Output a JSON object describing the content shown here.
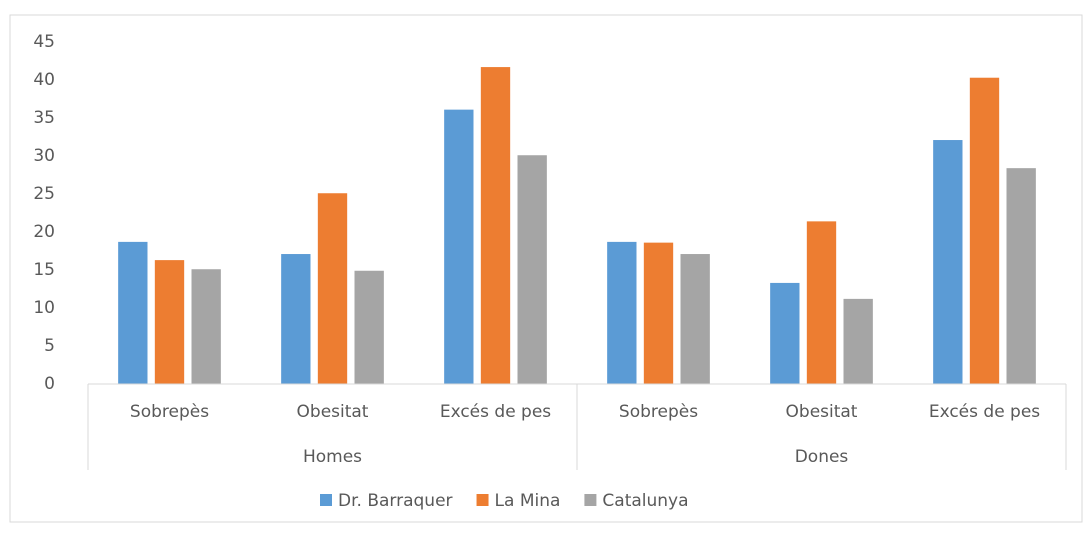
{
  "chart_data": {
    "type": "bar",
    "groups": [
      {
        "name": "Homes",
        "categories": [
          "Sobrepès",
          "Obesitat",
          "Excés de pes"
        ]
      },
      {
        "name": "Dones",
        "categories": [
          "Sobrepès",
          "Obesitat",
          "Excés de pes"
        ]
      }
    ],
    "series": [
      {
        "name": "Dr. Barraquer",
        "color": "#5b9bd5",
        "values": [
          18.7,
          17.1,
          36.1,
          18.7,
          13.3,
          32.1
        ]
      },
      {
        "name": "La Mina",
        "color": "#ed7d31",
        "values": [
          16.3,
          25.1,
          41.7,
          18.6,
          21.4,
          40.3
        ]
      },
      {
        "name": "Catalunya",
        "color": "#a5a5a5",
        "values": [
          15.1,
          14.9,
          30.1,
          17.1,
          11.2,
          28.4
        ]
      }
    ],
    "ylim": [
      0,
      45
    ],
    "yticks": [
      0,
      5,
      10,
      15,
      20,
      25,
      30,
      35,
      40,
      45
    ],
    "grid": false,
    "legend": "bottom"
  }
}
